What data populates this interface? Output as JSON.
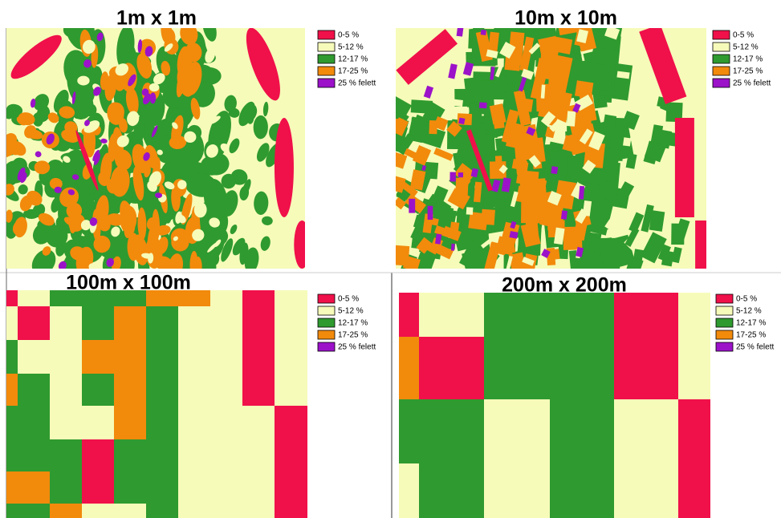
{
  "panels": [
    {
      "title": "1m x 1m",
      "legend": [
        "0-5 %",
        "5-12 %",
        "12-17 %",
        "17-25 %",
        "25 % felett"
      ]
    },
    {
      "title": "10m x 10m",
      "legend": [
        "0-5 %",
        "5-12 %",
        "12-17 %",
        "17-25 %",
        "25 % felett"
      ]
    },
    {
      "title": "100m x 100m",
      "legend": [
        "0-5 %",
        "5-12 %",
        "12-17 %",
        "17-25 %",
        "25 % felett"
      ]
    },
    {
      "title": "200m x 200m",
      "legend": [
        "0-5 %",
        "5-12 %",
        "12-17 %",
        "17-25 %",
        "25 % felett"
      ]
    }
  ]
}
